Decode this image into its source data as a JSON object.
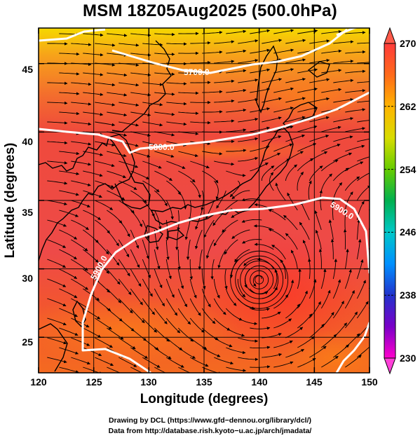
{
  "title": "MSM 18Z05Aug2025 (500.0hPa)",
  "map": {
    "lon_range": [
      120,
      150
    ],
    "lat_range": [
      22.4,
      47.6
    ],
    "xlabel": "Longitude (degrees)",
    "ylabel": "Latitude  (degrees)",
    "x_ticks": [
      "120",
      "125",
      "130",
      "135",
      "140",
      "145",
      "150"
    ],
    "y_ticks": [
      "25",
      "30",
      "35",
      "40",
      "45"
    ],
    "shading": "temperature",
    "streamlines": true,
    "cyclone_center": [
      140,
      29.2
    ]
  },
  "contours": [
    {
      "label": "5700.0",
      "color": "#ffffff"
    },
    {
      "label": "5800.0",
      "color": "#ffffff"
    },
    {
      "label": "5900.0",
      "color": "#ffffff"
    },
    {
      "label": "5900.0",
      "color": "#ffffff"
    }
  ],
  "colorbar": {
    "min": 230,
    "max": 270,
    "labels": [
      "270",
      "262",
      "254",
      "246",
      "238",
      "230"
    ],
    "colors": [
      "#ff3b3b",
      "#ff6a1a",
      "#ffb400",
      "#d8dc00",
      "#66cc00",
      "#00b050",
      "#00c8c8",
      "#0090ff",
      "#2233cc",
      "#7a00c8",
      "#ff00cc"
    ]
  },
  "credit": {
    "line1": "Drawing by DCL (https://www.gfd−dennou.org/library/dcl/)",
    "line2": "Data from http://database.rish.kyoto−u.ac.jp/arch/jmadata/"
  }
}
